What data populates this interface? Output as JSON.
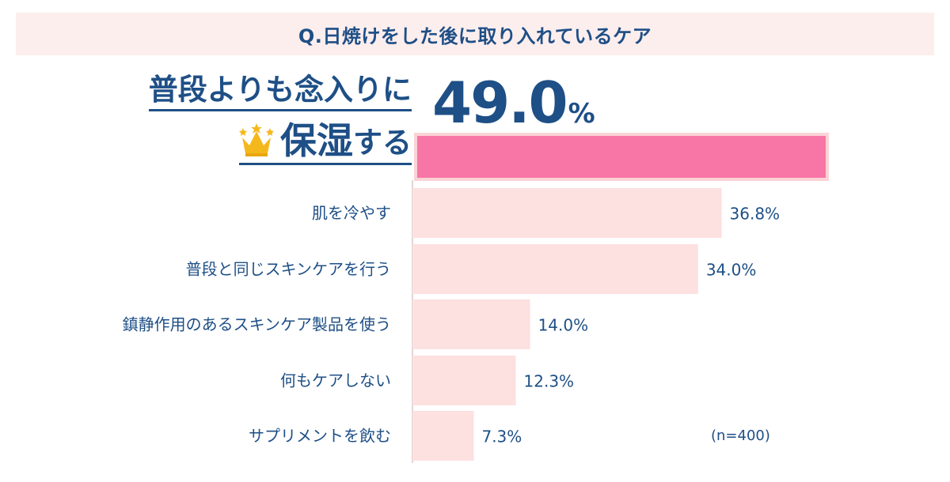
{
  "title": "Q.日焼けをした後に取り入れているケア",
  "highlight": {
    "line1": "普段よりも念入りに",
    "line2_big": "保湿",
    "line2_small": "する",
    "value_number": "49.0",
    "value_unit": "%"
  },
  "note": "(n=400)",
  "colors": {
    "title_text": "#1e4f86",
    "title_band": "#fdeeee",
    "highlight_bar": "#f776a6",
    "highlight_bar_border": "#fbd3d6",
    "bar": "#fde0e0",
    "axis": "#d9c8c8",
    "crown": "#f5b81c"
  },
  "chart_data": {
    "type": "bar",
    "orientation": "horizontal",
    "unit": "%",
    "categories": [
      "普段よりも念入りに保湿する",
      "肌を冷やす",
      "普段と同じスキンケアを行う",
      "鎮静作用のあるスキンケア製品を使う",
      "何もケアしない",
      "サプリメントを飲む"
    ],
    "values": [
      49.0,
      36.8,
      34.0,
      14.0,
      12.3,
      7.3
    ],
    "value_labels": [
      "49.0%",
      "36.8%",
      "34.0%",
      "14.0%",
      "12.3%",
      "7.3%"
    ],
    "xlim": [
      0,
      60
    ],
    "grid": false,
    "legend": "none"
  }
}
